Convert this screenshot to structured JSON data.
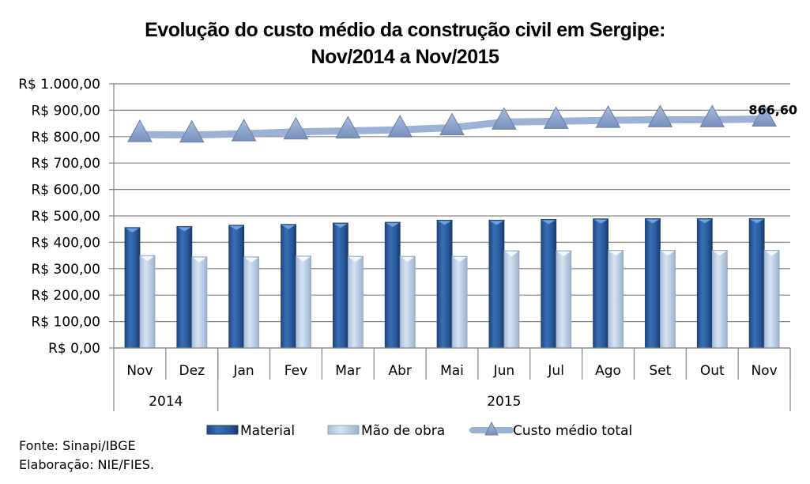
{
  "chart_data": {
    "type": "bar",
    "title": "Evolução do custo médio da construção civil em Sergipe:",
    "subtitle": "Nov/2014 a Nov/2015",
    "categories": [
      "Nov",
      "Dez",
      "Jan",
      "Fev",
      "Mar",
      "Abr",
      "Mai",
      "Jun",
      "Jul",
      "Ago",
      "Set",
      "Out",
      "Nov"
    ],
    "year_groups": [
      {
        "label": "2014",
        "span": 2
      },
      {
        "label": "2015",
        "span": 11
      }
    ],
    "ylim": [
      0,
      1000
    ],
    "y_ticks": [
      {
        "value": 0,
        "label": "R$ 0,00"
      },
      {
        "value": 100,
        "label": "R$ 100,00"
      },
      {
        "value": 200,
        "label": "R$ 200,00"
      },
      {
        "value": 300,
        "label": "R$ 300,00"
      },
      {
        "value": 400,
        "label": "R$ 400,00"
      },
      {
        "value": 500,
        "label": "R$ 500,00"
      },
      {
        "value": 600,
        "label": "R$ 600,00"
      },
      {
        "value": 700,
        "label": "R$ 700,00"
      },
      {
        "value": 800,
        "label": "R$ 800,00"
      },
      {
        "value": 900,
        "label": "R$ 900,00"
      },
      {
        "value": 1000,
        "label": "R$ 1.000,00"
      }
    ],
    "grid": true,
    "legend_position": "bottom",
    "series": [
      {
        "name": "Material",
        "kind": "bar",
        "color": "#2F5F9F",
        "values": [
          456,
          460,
          465,
          468,
          473,
          476,
          484,
          484,
          487,
          489,
          490,
          490,
          490
        ]
      },
      {
        "name": "Mão de obra",
        "kind": "bar",
        "color": "#C9D8EE",
        "values": [
          350,
          345,
          345,
          348,
          347,
          347,
          347,
          368,
          368,
          370,
          370,
          370,
          370
        ]
      },
      {
        "name": "Custo médio total",
        "kind": "line",
        "color": "#9DB1D6",
        "values": [
          808,
          806,
          811,
          818,
          822,
          826,
          834,
          855,
          858,
          862,
          864,
          864,
          866.6
        ]
      }
    ],
    "annotations": [
      {
        "text": "866,60",
        "category_index": 12,
        "series": "Custo médio total"
      }
    ]
  },
  "footer": {
    "source": "Fonte: Sinapi/IBGE",
    "credit": "Elaboração: NIE/FIES."
  }
}
